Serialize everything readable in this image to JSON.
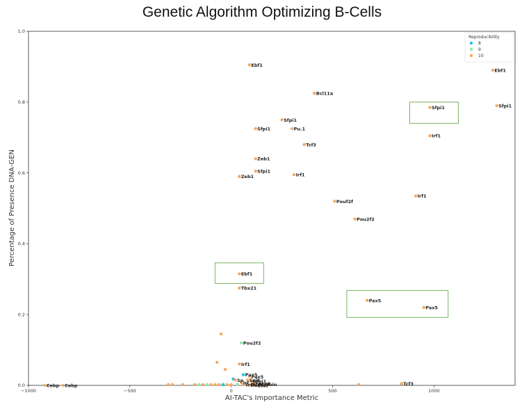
{
  "chart_data": {
    "type": "scatter",
    "title": "Genetic Algorithm Optimizing B-Cells",
    "xlabel": "AI-TAC's Importance Metric",
    "ylabel": "Percentage of Presence DNA-GEN",
    "xlim": [
      -1000,
      1400
    ],
    "ylim": [
      0,
      1.0
    ],
    "xticks": [
      -1000,
      -500,
      0,
      500,
      1000
    ],
    "xtick_labels": [
      "−1000",
      "−500",
      "0",
      "500",
      "1000"
    ],
    "yticks": [
      0.0,
      0.2,
      0.4,
      0.6,
      0.8,
      1.0
    ],
    "ytick_labels": [
      "0.0",
      "0.2",
      "0.4",
      "0.6",
      "0.8",
      "1.0"
    ],
    "grid": false,
    "legend": {
      "title": "Reproducibility",
      "placement": "top-right",
      "entries": [
        {
          "label": "8",
          "color": "#1cc0e0"
        },
        {
          "label": "9",
          "color": "#8fe8b0"
        },
        {
          "label": "10",
          "color": "#f5a965"
        }
      ]
    },
    "colors": {
      "8": "#1cc0e0",
      "9": "#8fe8b0",
      "10": "#f5a965",
      "highlight_box": "#6aa84f"
    },
    "points": [
      {
        "x": 90,
        "y": 0.905,
        "r": "10",
        "label": "Ebf1"
      },
      {
        "x": 1290,
        "y": 0.89,
        "r": "10",
        "label": "Ebf1"
      },
      {
        "x": 410,
        "y": 0.825,
        "r": "10",
        "label": "Bcl11a"
      },
      {
        "x": 1310,
        "y": 0.79,
        "r": "10",
        "label": "Sfpi1"
      },
      {
        "x": 980,
        "y": 0.785,
        "r": "10",
        "label": "Sfpi1"
      },
      {
        "x": 250,
        "y": 0.75,
        "r": "10",
        "label": "Sfpi1"
      },
      {
        "x": 300,
        "y": 0.725,
        "r": "10",
        "label": "Pu.1"
      },
      {
        "x": 120,
        "y": 0.725,
        "r": "10",
        "label": "Sfpi1"
      },
      {
        "x": 980,
        "y": 0.705,
        "r": "10",
        "label": "Irf1"
      },
      {
        "x": 360,
        "y": 0.68,
        "r": "10",
        "label": "Tcf3"
      },
      {
        "x": 120,
        "y": 0.64,
        "r": "10",
        "label": "Zeb1"
      },
      {
        "x": 120,
        "y": 0.605,
        "r": "10",
        "label": "Sfpi1"
      },
      {
        "x": 40,
        "y": 0.59,
        "r": "10",
        "label": "Zeb1"
      },
      {
        "x": 310,
        "y": 0.595,
        "r": "10",
        "label": "Irf1"
      },
      {
        "x": 910,
        "y": 0.535,
        "r": "10",
        "label": "Irf1"
      },
      {
        "x": 510,
        "y": 0.52,
        "r": "10",
        "label": "Pouf2f"
      },
      {
        "x": 610,
        "y": 0.47,
        "r": "10",
        "label": "Pou2f2"
      },
      {
        "x": 40,
        "y": 0.315,
        "r": "10",
        "label": "Ebf1"
      },
      {
        "x": 40,
        "y": 0.275,
        "r": "10",
        "label": "Tbx21"
      },
      {
        "x": 670,
        "y": 0.24,
        "r": "10",
        "label": "Pax5"
      },
      {
        "x": 950,
        "y": 0.22,
        "r": "10",
        "label": "Pax5"
      },
      {
        "x": -50,
        "y": 0.145,
        "r": "10",
        "label": ""
      },
      {
        "x": 50,
        "y": 0.12,
        "r": "9",
        "label": "Pou2f2"
      },
      {
        "x": -70,
        "y": 0.065,
        "r": "10",
        "label": ""
      },
      {
        "x": -30,
        "y": 0.045,
        "r": "10",
        "label": ""
      },
      {
        "x": 40,
        "y": 0.06,
        "r": "10",
        "label": "Irf1"
      },
      {
        "x": 60,
        "y": 0.03,
        "r": "8",
        "label": "Pax5"
      },
      {
        "x": 90,
        "y": 0.025,
        "r": "10",
        "label": "Pax5"
      },
      {
        "x": 10,
        "y": 0.018,
        "r": "8",
        "label": ""
      },
      {
        "x": 20,
        "y": 0.015,
        "r": "10",
        "label": "Sp"
      },
      {
        "x": 80,
        "y": 0.015,
        "r": "10",
        "label": "Spi1"
      },
      {
        "x": 100,
        "y": 0.012,
        "r": "10",
        "label": "Sfpi1"
      },
      {
        "x": 50,
        "y": 0.008,
        "r": "10",
        "label": "Irf"
      },
      {
        "x": 110,
        "y": 0.005,
        "r": "10",
        "label": "Foxo1"
      },
      {
        "x": 130,
        "y": 0.003,
        "r": "10",
        "label": "Mytbin"
      },
      {
        "x": 60,
        "y": 0.002,
        "r": "10",
        "label": "Tcf3"
      },
      {
        "x": 90,
        "y": 0.001,
        "r": "10",
        "label": "Pax5"
      },
      {
        "x": 120,
        "y": 0.0,
        "r": "10",
        "label": "Ets1"
      },
      {
        "x": -920,
        "y": 0.0,
        "r": "10",
        "label": "Cebp"
      },
      {
        "x": -830,
        "y": 0.0,
        "r": "10",
        "label": "Cebp"
      },
      {
        "x": 840,
        "y": 0.005,
        "r": "10",
        "label": "Tcf3"
      },
      {
        "x": 630,
        "y": 0.002,
        "r": "10",
        "label": ""
      },
      {
        "x": -310,
        "y": 0.002,
        "r": "10",
        "label": ""
      },
      {
        "x": -290,
        "y": 0.002,
        "r": "10",
        "label": ""
      },
      {
        "x": -240,
        "y": 0.002,
        "r": "10",
        "label": ""
      },
      {
        "x": -180,
        "y": 0.002,
        "r": "10",
        "label": ""
      },
      {
        "x": -160,
        "y": 0.002,
        "r": "9",
        "label": ""
      },
      {
        "x": -140,
        "y": 0.002,
        "r": "10",
        "label": ""
      },
      {
        "x": -120,
        "y": 0.002,
        "r": "9",
        "label": ""
      },
      {
        "x": -100,
        "y": 0.002,
        "r": "10",
        "label": ""
      },
      {
        "x": -80,
        "y": 0.002,
        "r": "10",
        "label": ""
      },
      {
        "x": -60,
        "y": 0.002,
        "r": "10",
        "label": ""
      },
      {
        "x": -40,
        "y": 0.002,
        "r": "8",
        "label": ""
      },
      {
        "x": -20,
        "y": 0.002,
        "r": "10",
        "label": ""
      },
      {
        "x": 0,
        "y": 0.002,
        "r": "10",
        "label": ""
      },
      {
        "x": 30,
        "y": 0.003,
        "r": "9",
        "label": ""
      },
      {
        "x": 150,
        "y": 0.002,
        "r": "10",
        "label": ""
      },
      {
        "x": 180,
        "y": 0.002,
        "r": "10",
        "label": ""
      }
    ],
    "highlight_boxes": [
      {
        "x0": 880,
        "x1": 1120,
        "y0": 0.74,
        "y1": 0.8
      },
      {
        "x0": -80,
        "x1": 160,
        "y0": 0.288,
        "y1": 0.346
      },
      {
        "x0": 570,
        "x1": 1070,
        "y0": 0.192,
        "y1": 0.268
      }
    ]
  }
}
